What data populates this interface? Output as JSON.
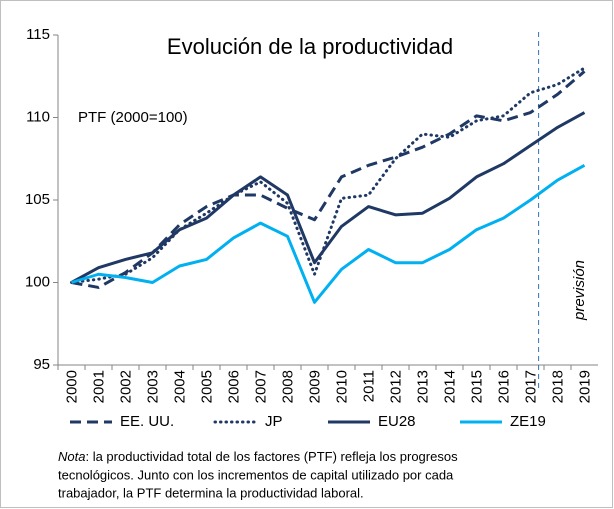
{
  "chart_data": {
    "type": "line",
    "title": "Evolución de la productividad",
    "annotation": "PTF (2000=100)",
    "forecast_label": "previsión",
    "categories": [
      "2000",
      "2001",
      "2002",
      "2003",
      "2004",
      "2005",
      "2006",
      "2007",
      "2008",
      "2009",
      "2010",
      "2011",
      "2012",
      "2013",
      "2014",
      "2015",
      "2016",
      "2017",
      "2018",
      "2019"
    ],
    "series": [
      {
        "name": "EE. UU.",
        "color": "#1f3864",
        "style": "dashed",
        "values": [
          100,
          99.7,
          100.6,
          101.8,
          103.5,
          104.6,
          105.3,
          105.3,
          104.5,
          103.8,
          106.4,
          107.1,
          107.6,
          108.2,
          109,
          110.1,
          109.8,
          110.3,
          111.4,
          112.8
        ]
      },
      {
        "name": "JP",
        "color": "#1f3864",
        "style": "dotted",
        "values": [
          100,
          100.2,
          100.5,
          101.5,
          103.2,
          104.2,
          105.3,
          106.1,
          104.8,
          100.5,
          105.1,
          105.3,
          107.5,
          109,
          108.8,
          109.8,
          110.1,
          111.5,
          112,
          113
        ]
      },
      {
        "name": "EU28",
        "color": "#1f3864",
        "style": "solid",
        "values": [
          100,
          100.9,
          101.4,
          101.8,
          103.2,
          103.9,
          105.3,
          106.4,
          105.3,
          101.2,
          103.4,
          104.6,
          104.1,
          104.2,
          105.1,
          106.4,
          107.2,
          108.3,
          109.4,
          110.3
        ]
      },
      {
        "name": "ZE19",
        "color": "#00b0f0",
        "style": "solid",
        "values": [
          100,
          100.5,
          100.3,
          100,
          101,
          101.4,
          102.7,
          103.6,
          102.8,
          98.8,
          100.8,
          102,
          101.2,
          101.2,
          102,
          103.2,
          103.9,
          105,
          106.2,
          107.1
        ]
      }
    ],
    "ylim": [
      95,
      115
    ],
    "yticks": [
      95,
      100,
      105,
      110,
      115
    ],
    "note_label": "Nota",
    "note_lines": [
      ": la productividad total de los factores (PTF) refleja los progresos",
      "tecnológicos.  Junto con los incrementos de capital utilizado por cada",
      "trabajador, la PTF determina la productividad laboral."
    ]
  }
}
